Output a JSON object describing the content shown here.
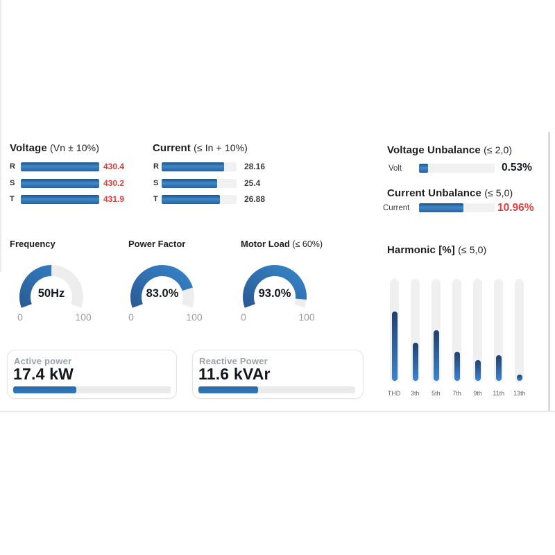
{
  "colors": {
    "accent_blue": "#2e74b5",
    "bar_gradient_top": "#1c5289",
    "bar_gradient_mid": "#3f88cb",
    "bar_gradient_bottom": "#27619f",
    "harmonic_gradient_top": "#21406e",
    "harmonic_gradient_bottom": "#3b84d2",
    "alert_red": "#e23d3d",
    "track_gray": "#f0f0f0",
    "text_dark": "#1e1e1e",
    "muted_gray": "#9aa1a9",
    "axis_gray": "#9b9b9b"
  },
  "chart_data": [
    {
      "id": "voltage",
      "type": "bar",
      "orientation": "horizontal",
      "title": "Voltage",
      "limit_note": "(Vn ± 10%)",
      "categories": [
        "R",
        "S",
        "T"
      ],
      "values": [
        430.4,
        430.2,
        431.9
      ],
      "display_values": [
        "430.4",
        "430.2",
        "431.9"
      ],
      "fill_percents": [
        100,
        100,
        100
      ],
      "value_state": "alert"
    },
    {
      "id": "current",
      "type": "bar",
      "orientation": "horizontal",
      "title": "Current",
      "limit_note": "(≤ In + 10%)",
      "categories": [
        "R",
        "S",
        "T"
      ],
      "values": [
        28.16,
        25.4,
        26.88
      ],
      "display_values": [
        "28.16",
        "25.4",
        "26.88"
      ],
      "fill_percents": [
        83,
        74,
        78
      ],
      "value_state": "normal"
    },
    {
      "id": "voltage-unbalance",
      "type": "bar",
      "orientation": "horizontal",
      "title": "Voltage Unbalance",
      "limit_note": "(≤ 2,0)",
      "categories": [
        "Volt"
      ],
      "values": [
        0.53
      ],
      "display_values": [
        "0.53%"
      ],
      "fill_percents": [
        12
      ],
      "value_state": "normal"
    },
    {
      "id": "current-unbalance",
      "type": "bar",
      "orientation": "horizontal",
      "title": "Current Unbalance",
      "limit_note": "(≤ 5,0)",
      "categories": [
        "Current"
      ],
      "values": [
        10.96
      ],
      "display_values": [
        "10.96%"
      ],
      "fill_percents": [
        59
      ],
      "value_state": "alert"
    },
    {
      "id": "frequency",
      "type": "gauge",
      "title": "Frequency",
      "limit_note": "",
      "value": 50,
      "display_value": "50Hz",
      "range": [
        0,
        100
      ],
      "axis_labels": [
        "0",
        "100"
      ]
    },
    {
      "id": "power-factor",
      "type": "gauge",
      "title": "Power Factor",
      "limit_note": "",
      "value": 83,
      "display_value": "83.0%",
      "range": [
        0,
        100
      ],
      "axis_labels": [
        "0",
        "100"
      ]
    },
    {
      "id": "motor-load",
      "type": "gauge",
      "title": "Motor Load",
      "limit_note": "(≤ 60%)",
      "value": 93,
      "display_value": "93.0%",
      "range": [
        0,
        100
      ],
      "axis_labels": [
        "0",
        "100"
      ]
    },
    {
      "id": "harmonic",
      "type": "bar",
      "orientation": "vertical",
      "title": "Harmonic [%]",
      "limit_note": "(≤ 5,0)",
      "categories": [
        "THD",
        "3th",
        "5th",
        "7th",
        "9th",
        "11th",
        "13th"
      ],
      "fill_percents": [
        67,
        37,
        49,
        28,
        20,
        25,
        6
      ]
    },
    {
      "id": "active-power",
      "type": "progress",
      "title": "Active power",
      "display_value": "17.4 kW",
      "fill_percent": 40
    },
    {
      "id": "reactive-power",
      "type": "progress",
      "title": "Reactive Power",
      "display_value": "11.6 kVAr",
      "fill_percent": 38
    }
  ]
}
